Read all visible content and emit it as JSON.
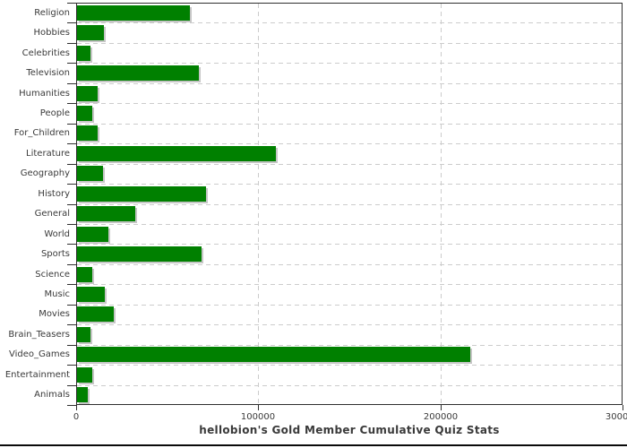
{
  "page": {
    "background": "#ffffff",
    "bottom_rule_color": "#0a0a0a"
  },
  "chart_data": {
    "type": "bar",
    "orientation": "horizontal",
    "title": "hellobion's Gold Member Cumulative Quiz Stats",
    "categories": [
      "Religion",
      "Hobbies",
      "Celebrities",
      "Television",
      "Humanities",
      "People",
      "For_Children",
      "Literature",
      "Geography",
      "History",
      "General",
      "World",
      "Sports",
      "Science",
      "Music",
      "Movies",
      "Brain_Teasers",
      "Video_Games",
      "Entertainment",
      "Animals"
    ],
    "values": [
      62000,
      14800,
      7500,
      66700,
      11500,
      8500,
      11200,
      109200,
      14400,
      71000,
      32200,
      17100,
      68500,
      8200,
      15300,
      20300,
      7200,
      215800,
      8200,
      5900
    ],
    "xlabel": "",
    "ylabel": "",
    "xlim": [
      0,
      300000
    ],
    "x_ticks": [
      0,
      100000,
      200000,
      300000
    ],
    "x_tick_labels": [
      "0",
      "100000",
      "200000",
      "300000"
    ],
    "grid": "dashed, both axes, light gray",
    "legend": "none",
    "bar_color": "#008000",
    "bar_shadow_color": "#c6c6c6",
    "grid_color": "#cccccc",
    "axis_color": "#2f2f2f",
    "label_color": "#3a3a3a"
  }
}
